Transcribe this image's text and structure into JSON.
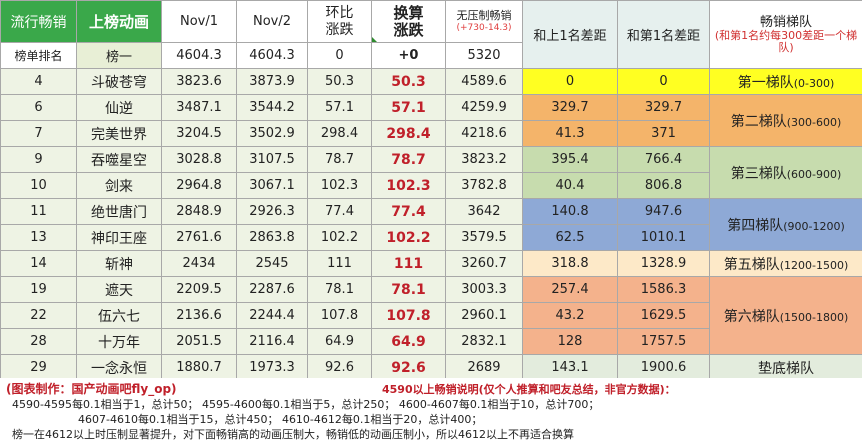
{
  "header": {
    "genre_label": "流行畅销",
    "anime_label": "上榜动画",
    "col_nov1": "Nov/1",
    "col_nov2": "Nov/2",
    "col_change": "环比\n涨跌",
    "col_exchange": "换算\n涨跌",
    "col_uncapped": "无压制畅销",
    "col_uncapped_sub": "(+730-14.3)",
    "col_gap_prev": "和上1名差距",
    "col_gap_first": "和第1名差距",
    "col_tier": "畅销梯队",
    "col_tier_sub": "(和第1名约每300差距一个梯队)"
  },
  "base_row": {
    "rank": "榜单排名",
    "name": "榜一",
    "nov1": "4604.3",
    "nov2": "4604.3",
    "change": "0",
    "exchange": "+0",
    "uncapped": "5320"
  },
  "rows": [
    {
      "rank": "4",
      "name": "斗破苍穹",
      "nov1": "3823.6",
      "nov2": "3873.9",
      "change": "50.3",
      "exchange": "50.3",
      "uncapped": "4589.6",
      "gap_prev": "0",
      "gap_first": "0"
    },
    {
      "rank": "6",
      "name": "仙逆",
      "nov1": "3487.1",
      "nov2": "3544.2",
      "change": "57.1",
      "exchange": "57.1",
      "uncapped": "4259.9",
      "gap_prev": "329.7",
      "gap_first": "329.7"
    },
    {
      "rank": "7",
      "name": "完美世界",
      "nov1": "3204.5",
      "nov2": "3502.9",
      "change": "298.4",
      "exchange": "298.4",
      "uncapped": "4218.6",
      "gap_prev": "41.3",
      "gap_first": "371"
    },
    {
      "rank": "9",
      "name": "吞噬星空",
      "nov1": "3028.8",
      "nov2": "3107.5",
      "change": "78.7",
      "exchange": "78.7",
      "uncapped": "3823.2",
      "gap_prev": "395.4",
      "gap_first": "766.4"
    },
    {
      "rank": "10",
      "name": "剑来",
      "nov1": "2964.8",
      "nov2": "3067.1",
      "change": "102.3",
      "exchange": "102.3",
      "uncapped": "3782.8",
      "gap_prev": "40.4",
      "gap_first": "806.8"
    },
    {
      "rank": "11",
      "name": "绝世唐门",
      "nov1": "2848.9",
      "nov2": "2926.3",
      "change": "77.4",
      "exchange": "77.4",
      "uncapped": "3642",
      "gap_prev": "140.8",
      "gap_first": "947.6"
    },
    {
      "rank": "13",
      "name": "神印王座",
      "nov1": "2761.6",
      "nov2": "2863.8",
      "change": "102.2",
      "exchange": "102.2",
      "uncapped": "3579.5",
      "gap_prev": "62.5",
      "gap_first": "1010.1"
    },
    {
      "rank": "14",
      "name": "斩神",
      "nov1": "2434",
      "nov2": "2545",
      "change": "111",
      "exchange": "111",
      "uncapped": "3260.7",
      "gap_prev": "318.8",
      "gap_first": "1328.9"
    },
    {
      "rank": "19",
      "name": "遮天",
      "nov1": "2209.5",
      "nov2": "2287.6",
      "change": "78.1",
      "exchange": "78.1",
      "uncapped": "3003.3",
      "gap_prev": "257.4",
      "gap_first": "1586.3"
    },
    {
      "rank": "22",
      "name": "伍六七",
      "nov1": "2136.6",
      "nov2": "2244.4",
      "change": "107.8",
      "exchange": "107.8",
      "uncapped": "2960.1",
      "gap_prev": "43.2",
      "gap_first": "1629.5"
    },
    {
      "rank": "28",
      "name": "十万年",
      "nov1": "2051.5",
      "nov2": "2116.4",
      "change": "64.9",
      "exchange": "64.9",
      "uncapped": "2832.1",
      "gap_prev": "128",
      "gap_first": "1757.5"
    },
    {
      "rank": "29",
      "name": "一念永恒",
      "nov1": "1880.7",
      "nov2": "1973.3",
      "change": "92.6",
      "exchange": "92.6",
      "uncapped": "2689",
      "gap_prev": "143.1",
      "gap_first": "1900.6"
    }
  ],
  "tiers": [
    {
      "name": "第一梯队",
      "range": "(0-300)"
    },
    {
      "name": "第二梯队",
      "range": "(300-600)"
    },
    {
      "name": "第三梯队",
      "range": "(600-900)"
    },
    {
      "name": "第四梯队",
      "range": "(900-1200)"
    },
    {
      "name": "第五梯队",
      "range": "(1200-1500)"
    },
    {
      "name": "第六梯队",
      "range": "(1500-1800)"
    },
    {
      "name": "垫底梯队",
      "range": ""
    }
  ],
  "notes": {
    "credit": "(图表制作：国产动画吧fly_op)",
    "title": "4590以上畅销说明(仅个人推算和吧友总结，非官方数据)：",
    "line1": "4590-4595每0.1相当于1，总计50； 4595-4600每0.1相当于5，总计250； 4600-4607每0.1相当于10，总计700；",
    "line2": "4607-4610每0.1相当于15，总计450； 4610-4612每0.1相当于20，总计400；",
    "line3": "榜一在4612以上时压制显著提升，对下面畅销高的动画压制大，畅销低的动画压制小，所以4612以上不再适合换算"
  },
  "colors": {
    "header_green": "#3aa84a",
    "tier1": "#ffff22",
    "tier2": "#f4b46a",
    "tier3": "#c7dcae",
    "tier4": "#8ea9d6",
    "tier5": "#fde9c8",
    "tier6": "#f4b28c",
    "exchange_text": "#c0202a"
  }
}
